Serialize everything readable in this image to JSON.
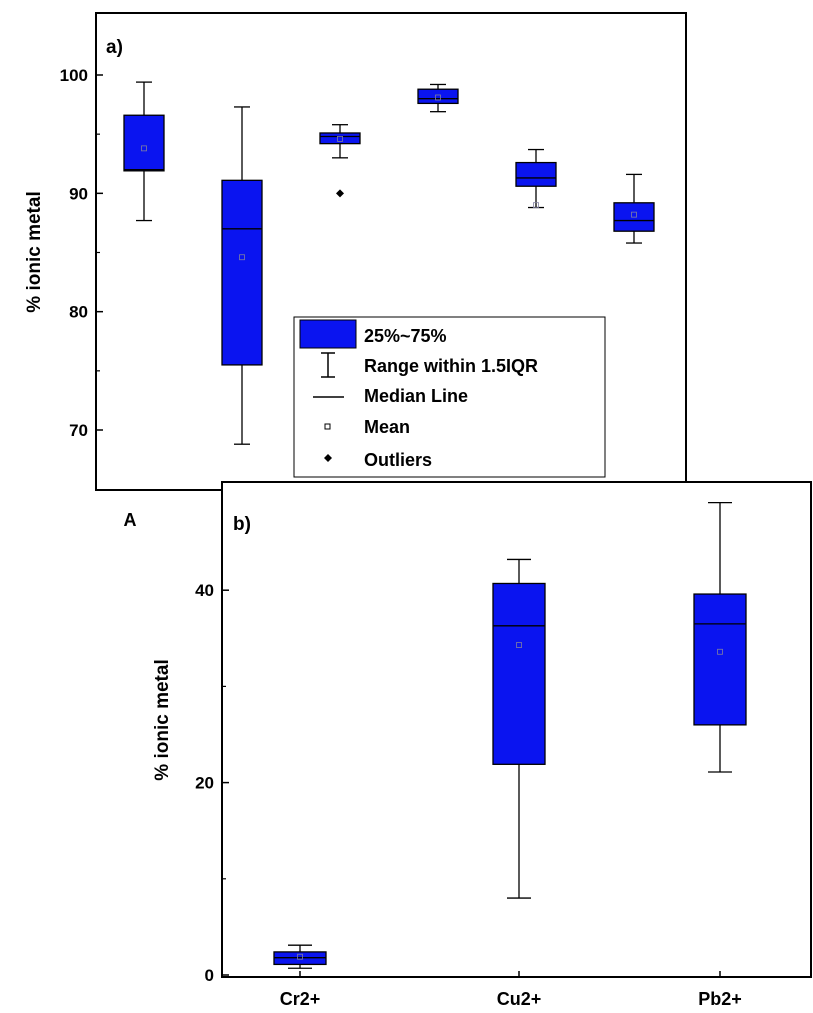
{
  "colors": {
    "box_fill": "#0a14f0",
    "box_edge": "#000000",
    "axis": "#000000"
  },
  "chart_data": [
    {
      "type": "box",
      "panel_label": "a)",
      "ylabel": "% ionic metal",
      "ylim": [
        65,
        105
      ],
      "yticks": [
        70,
        80,
        90,
        100
      ],
      "y_minor_ticks": [
        75,
        85,
        95
      ],
      "categories": [
        "A",
        "",
        "",
        "",
        "",
        ""
      ],
      "boxes": [
        {
          "q1": 91.9,
          "median": 92.0,
          "q3": 96.6,
          "whisker_low": 87.7,
          "whisker_high": 99.4,
          "mean": 93.8,
          "outliers": []
        },
        {
          "q1": 75.5,
          "median": 87.0,
          "q3": 91.1,
          "whisker_low": 68.8,
          "whisker_high": 97.3,
          "mean": 84.6,
          "outliers": []
        },
        {
          "q1": 94.2,
          "median": 94.8,
          "q3": 95.1,
          "whisker_low": 93.0,
          "whisker_high": 95.8,
          "mean": 94.6,
          "outliers": [
            90.0
          ]
        },
        {
          "q1": 97.6,
          "median": 98.0,
          "q3": 98.8,
          "whisker_low": 96.9,
          "whisker_high": 99.2,
          "mean": 98.1,
          "outliers": []
        },
        {
          "q1": 90.6,
          "median": 91.3,
          "q3": 92.6,
          "whisker_low": 88.8,
          "whisker_high": 93.7,
          "mean": 89.0,
          "outliers": []
        },
        {
          "q1": 86.8,
          "median": 87.7,
          "q3": 89.2,
          "whisker_low": 85.8,
          "whisker_high": 91.6,
          "mean": 88.2,
          "outliers": []
        }
      ],
      "legend": {
        "placement": "inside, lower-right",
        "entries": [
          {
            "icon": "box",
            "label": "25%~75%"
          },
          {
            "icon": "whisker",
            "label": "Range within 1.5IQR"
          },
          {
            "icon": "line",
            "label": "Median Line"
          },
          {
            "icon": "square",
            "label": "Mean"
          },
          {
            "icon": "diamond",
            "label": "Outliers"
          }
        ]
      }
    },
    {
      "type": "box",
      "panel_label": "b)",
      "ylabel": "% ionic metal",
      "ylim": [
        0,
        50
      ],
      "yticks": [
        0,
        20,
        40
      ],
      "y_minor_ticks": [
        10,
        30
      ],
      "categories": [
        "Cr2+",
        "Cu2+",
        "Pb2+"
      ],
      "boxes": [
        {
          "q1": 1.1,
          "median": 1.8,
          "q3": 2.4,
          "whisker_low": 0.7,
          "whisker_high": 3.1,
          "mean": 1.9,
          "outliers": []
        },
        {
          "q1": 21.9,
          "median": 36.3,
          "q3": 40.7,
          "whisker_low": 8.0,
          "whisker_high": 43.2,
          "mean": 34.3,
          "outliers": []
        },
        {
          "q1": 26.0,
          "median": 36.5,
          "q3": 39.6,
          "whisker_low": 21.1,
          "whisker_high": 49.1,
          "mean": 33.6,
          "outliers": []
        }
      ]
    }
  ]
}
